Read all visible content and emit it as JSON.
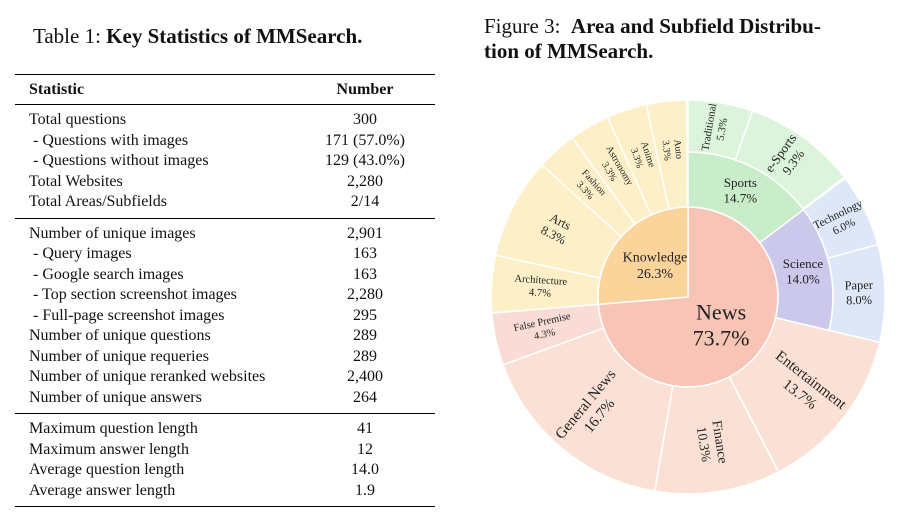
{
  "table": {
    "label": "Table 1:",
    "title": "Key Statistics of MMSearch.",
    "header": [
      "Statistic",
      "Number"
    ],
    "groups": [
      [
        [
          "Total questions",
          "300"
        ],
        [
          "- Questions with images",
          "171 (57.0%)"
        ],
        [
          "- Questions without images",
          "129 (43.0%)"
        ],
        [
          "Total Websites",
          "2,280"
        ],
        [
          "Total Areas/Subfields",
          "2/14"
        ]
      ],
      [
        [
          "Number of unique images",
          "2,901"
        ],
        [
          "- Query images",
          "163"
        ],
        [
          "- Google search images",
          "163"
        ],
        [
          "- Top section screenshot images",
          "2,280"
        ],
        [
          "- Full-page screenshot images",
          "295"
        ],
        [
          "Number of unique questions",
          "289"
        ],
        [
          "Number of unique requeries",
          "289"
        ],
        [
          "Number of unique reranked websites",
          "2,400"
        ],
        [
          "Number of unique answers",
          "264"
        ]
      ],
      [
        [
          "Maximum question length",
          "41"
        ],
        [
          "Maximum answer length",
          "12"
        ],
        [
          "Average question length",
          "14.0"
        ],
        [
          "Average answer length",
          "1.9"
        ]
      ]
    ]
  },
  "figure": {
    "label": "Figure 3:",
    "title_lines": [
      "Area and Subfield Distribu-",
      "tion of MMSearch."
    ]
  },
  "chart_data": {
    "type": "sunburst",
    "nodes": [
      {
        "name": "News",
        "value": 73.7,
        "value_label": "73.7%",
        "color": "#f7c4b6",
        "children": [
          {
            "name": "Sports",
            "value": 14.7,
            "value_label": "14.7%",
            "color": "#c9ecc9",
            "children": [
              {
                "name": "Traditional",
                "value": 5.3,
                "value_label": "5.3%",
                "color": "#dcf4dc"
              },
              {
                "name": "e-Sports",
                "value": 9.3,
                "value_label": "9.3%",
                "color": "#dcf4dc"
              }
            ]
          },
          {
            "name": "Science",
            "value": 14.0,
            "value_label": "14.0%",
            "color": "#cbc8ec",
            "children": [
              {
                "name": "Technology",
                "value": 6.0,
                "value_label": "6.0%",
                "color": "#dde7f8"
              },
              {
                "name": "Paper",
                "value": 8.0,
                "value_label": "8.0%",
                "color": "#dde7f8"
              }
            ]
          },
          {
            "name": "Entertainment",
            "value": 13.7,
            "value_label": "13.7%",
            "color": "#fbe1d5"
          },
          {
            "name": "Finance",
            "value": 10.3,
            "value_label": "10.3%",
            "color": "#fbe1d5"
          },
          {
            "name": "General News",
            "value": 16.7,
            "value_label": "16.7%",
            "color": "#fbe1d5"
          },
          {
            "name": "False Premise",
            "value": 4.3,
            "value_label": "4.3%",
            "color": "#f9dcd6"
          }
        ]
      },
      {
        "name": "Knowledge",
        "value": 26.3,
        "value_label": "26.3%",
        "color": "#fbd49c",
        "children": [
          {
            "name": "Architecture",
            "value": 4.7,
            "value_label": "4.7%",
            "color": "#fdf0c9"
          },
          {
            "name": "Arts",
            "value": 8.3,
            "value_label": "8.3%",
            "color": "#fdf0c9"
          },
          {
            "name": "Fashion",
            "value": 3.3,
            "value_label": "3.3%",
            "color": "#fdf0c9"
          },
          {
            "name": "Astronomy",
            "value": 3.3,
            "value_label": "3.3%",
            "color": "#fdf0c9"
          },
          {
            "name": "Anime",
            "value": 3.3,
            "value_label": "3.3%",
            "color": "#fdf0c9"
          },
          {
            "name": "Auto",
            "value": 3.3,
            "value_label": "3.3%",
            "color": "#fdf0c9"
          }
        ]
      }
    ]
  }
}
